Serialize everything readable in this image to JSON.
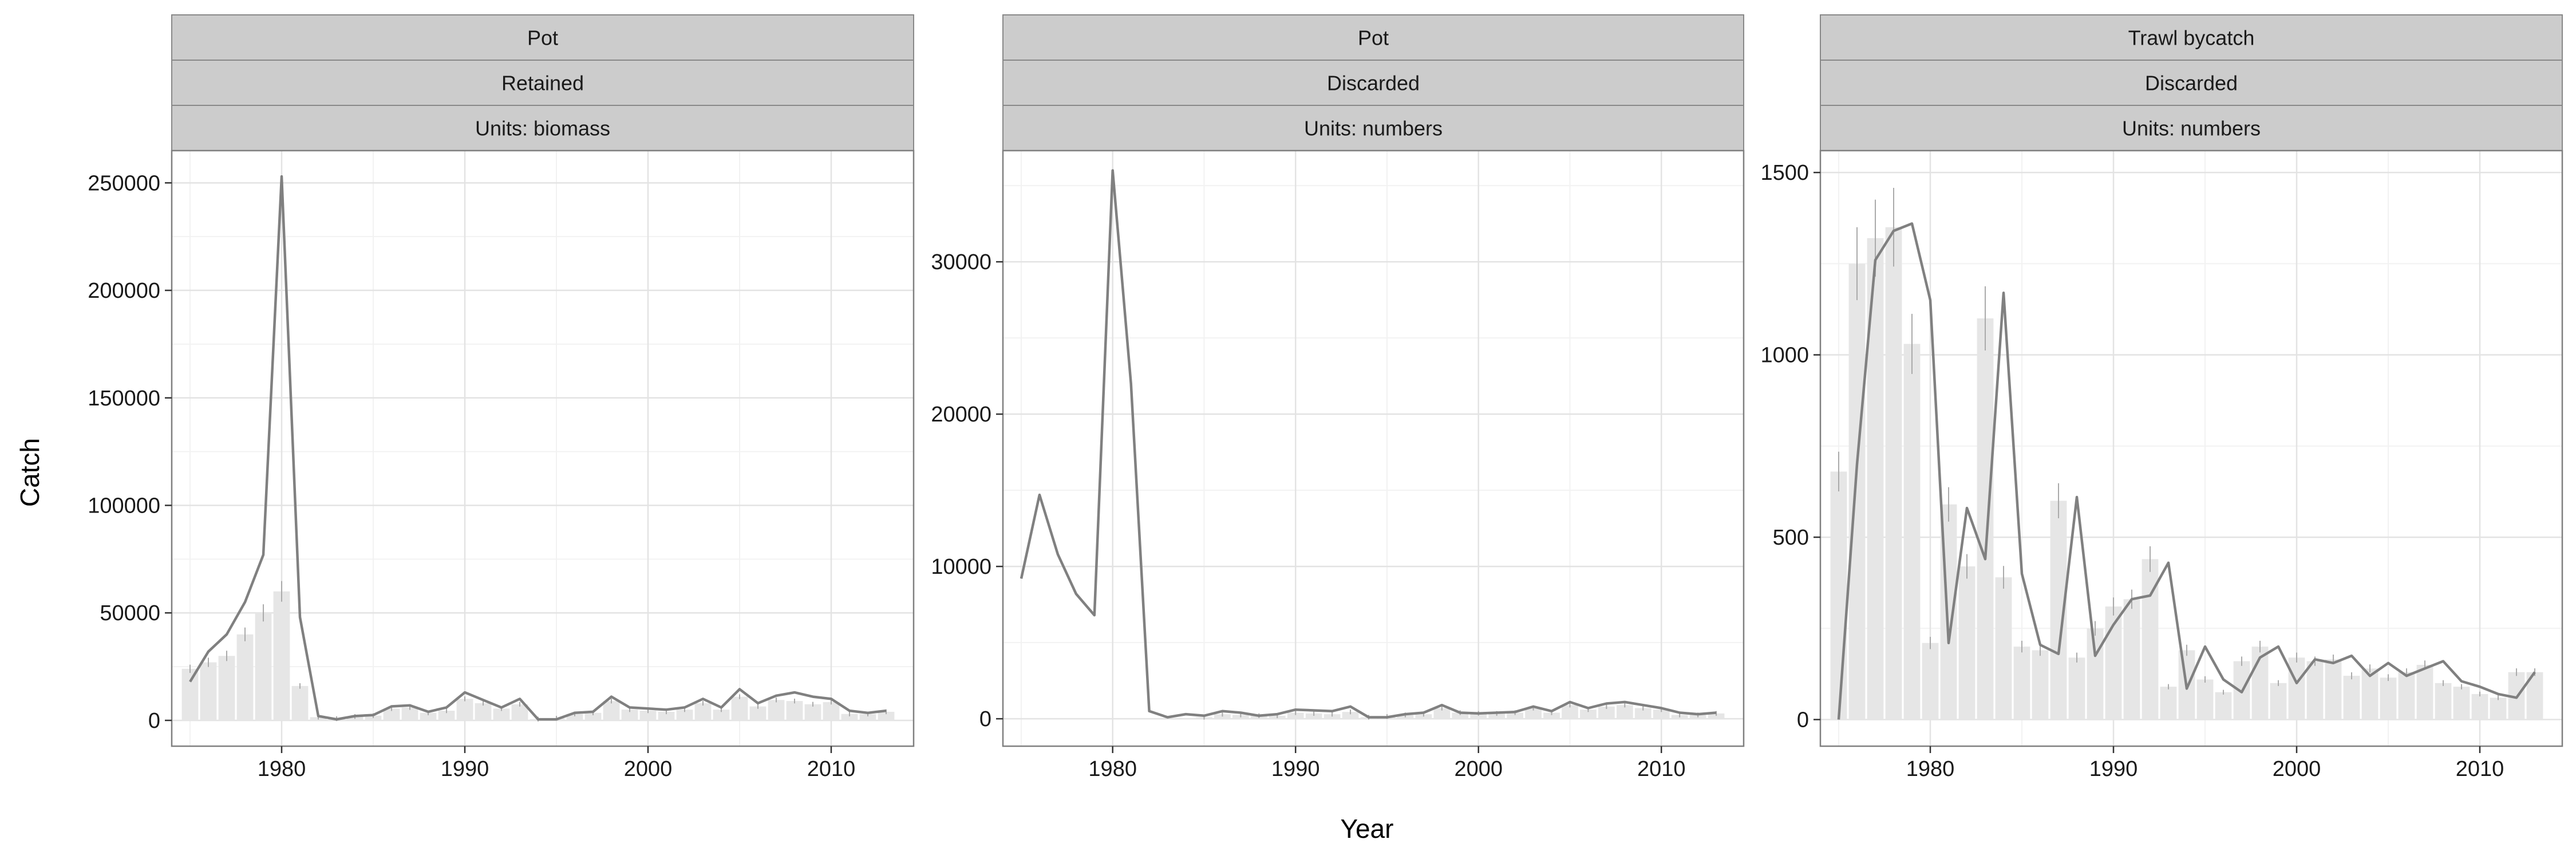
{
  "figure": {
    "ylabel": "Catch",
    "xlabel": "Year"
  },
  "chart_data": [
    {
      "type": "bar",
      "strips": [
        "Pot",
        "Retained",
        "Units: biomass"
      ],
      "xlim": [
        1974,
        2014.5
      ],
      "ylim": [
        -12000,
        265000
      ],
      "xticks": [
        1980,
        1990,
        2000,
        2010
      ],
      "yticks": [
        0,
        50000,
        100000,
        150000,
        200000,
        250000
      ],
      "grid": true,
      "x": [
        1975,
        1976,
        1977,
        1978,
        1979,
        1980,
        1981,
        1982,
        1983,
        1984,
        1985,
        1986,
        1987,
        1988,
        1989,
        1990,
        1991,
        1992,
        1993,
        1994,
        1995,
        1996,
        1997,
        1998,
        1999,
        2000,
        2001,
        2002,
        2003,
        2004,
        2005,
        2006,
        2007,
        2008,
        2009,
        2010,
        2011,
        2012,
        2013
      ],
      "observed": [
        24000,
        27000,
        30000,
        40000,
        50000,
        60000,
        16000,
        1500,
        800,
        1800,
        2200,
        5500,
        6000,
        3500,
        4500,
        10000,
        8000,
        5500,
        7500,
        600,
        1000,
        3000,
        3500,
        9000,
        5000,
        4500,
        4000,
        5000,
        8000,
        5000,
        11000,
        6500,
        9500,
        9000,
        7500,
        8500,
        3000,
        3000,
        4000
      ],
      "predicted": [
        18000,
        32000,
        40000,
        55000,
        77000,
        253000,
        48000,
        2000,
        500,
        2000,
        2500,
        6500,
        7000,
        4000,
        6000,
        13000,
        9500,
        6000,
        10000,
        500,
        500,
        3500,
        4000,
        11000,
        6000,
        5500,
        5000,
        6000,
        10000,
        6000,
        14500,
        8000,
        11500,
        13000,
        11000,
        10000,
        4500,
        3500,
        4500
      ]
    },
    {
      "type": "bar",
      "strips": [
        "Pot",
        "Discarded",
        "Units: numbers"
      ],
      "xlim": [
        1974,
        2014.5
      ],
      "ylim": [
        -1800,
        37300
      ],
      "xticks": [
        1980,
        1990,
        2000,
        2010
      ],
      "yticks": [
        0,
        10000,
        20000,
        30000
      ],
      "grid": true,
      "x": [
        1975,
        1976,
        1977,
        1978,
        1979,
        1980,
        1981,
        1982,
        1983,
        1984,
        1985,
        1986,
        1987,
        1988,
        1989,
        1990,
        1991,
        1992,
        1993,
        1994,
        1995,
        1996,
        1997,
        1998,
        1999,
        2000,
        2001,
        2002,
        2003,
        2004,
        2005,
        2006,
        2007,
        2008,
        2009,
        2010,
        2011,
        2012,
        2013
      ],
      "observed": [
        0,
        0,
        0,
        0,
        0,
        0,
        0,
        0,
        0,
        0,
        100,
        300,
        250,
        200,
        200,
        400,
        350,
        300,
        450,
        100,
        150,
        250,
        300,
        700,
        400,
        350,
        350,
        400,
        700,
        400,
        900,
        600,
        800,
        900,
        700,
        600,
        250,
        250,
        350
      ],
      "predicted": [
        9200,
        14700,
        10800,
        8200,
        6800,
        36000,
        22000,
        500,
        100,
        300,
        200,
        500,
        400,
        200,
        300,
        600,
        550,
        500,
        800,
        100,
        100,
        300,
        400,
        900,
        400,
        350,
        400,
        450,
        800,
        500,
        1100,
        700,
        1000,
        1100,
        900,
        700,
        400,
        300,
        400
      ]
    },
    {
      "type": "bar",
      "strips": [
        "Trawl bycatch",
        "Discarded",
        "Units: numbers"
      ],
      "xlim": [
        1974,
        2014.5
      ],
      "ylim": [
        -73,
        1560
      ],
      "xticks": [
        1980,
        1990,
        2000,
        2010
      ],
      "yticks": [
        0,
        500,
        1000,
        1500
      ],
      "grid": true,
      "x": [
        1975,
        1976,
        1977,
        1978,
        1979,
        1980,
        1981,
        1982,
        1983,
        1984,
        1985,
        1986,
        1987,
        1988,
        1989,
        1990,
        1991,
        1992,
        1993,
        1994,
        1995,
        1996,
        1997,
        1998,
        1999,
        2000,
        2001,
        2002,
        2003,
        2004,
        2005,
        2006,
        2007,
        2008,
        2009,
        2010,
        2011,
        2012,
        2013
      ],
      "observed": [
        680,
        1250,
        1320,
        1350,
        1030,
        210,
        590,
        420,
        1100,
        390,
        200,
        190,
        600,
        170,
        250,
        310,
        330,
        440,
        90,
        190,
        110,
        75,
        160,
        200,
        100,
        170,
        160,
        165,
        120,
        140,
        115,
        130,
        150,
        100,
        90,
        70,
        60,
        130,
        130
      ],
      "predicted": [
        0,
        700,
        1260,
        1340,
        1360,
        1150,
        210,
        580,
        440,
        1170,
        400,
        205,
        180,
        610,
        175,
        260,
        330,
        340,
        430,
        85,
        200,
        110,
        75,
        170,
        200,
        100,
        165,
        155,
        175,
        120,
        155,
        120,
        140,
        160,
        105,
        90,
        70,
        60,
        130
      ]
    }
  ]
}
